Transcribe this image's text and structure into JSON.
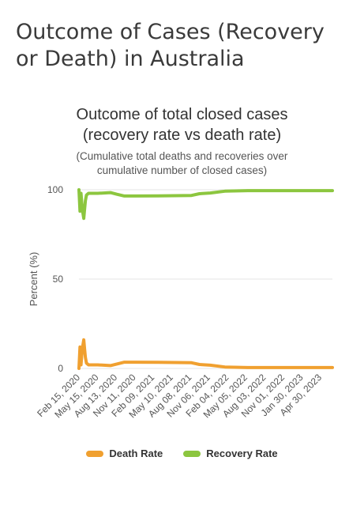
{
  "page": {
    "heading": "Outcome of Cases (Recovery or Death) in Australia"
  },
  "colors": {
    "death_rate": "#F0A030",
    "recovery_rate": "#8CC63F",
    "grid": "#e6e6e6"
  },
  "chart_data": {
    "type": "line",
    "title_line1": "Outcome of total closed cases",
    "title_line2": "(recovery rate vs death rate)",
    "subtitle_line1": "(Cumulative total deaths and recoveries over",
    "subtitle_line2": "cumulative number of closed cases)",
    "ylabel": "Percent (%)",
    "xlabel": "",
    "ylim": [
      0,
      100
    ],
    "yticks": [
      "0",
      "50",
      "100"
    ],
    "grid": true,
    "legend_position": "bottom-center",
    "x_tick_labels": [
      "Feb 15, 2020",
      "May 15, 2020",
      "Aug 13, 2020",
      "Nov 11, 2020",
      "Feb 09, 2021",
      "May 10, 2021",
      "Aug 08, 2021",
      "Nov 06, 2021",
      "Feb 04, 2022",
      "May 05, 2022",
      "Aug 03, 2022",
      "Nov 01, 2022",
      "Jan 30, 2023",
      "Apr 30, 2023"
    ],
    "x_range": [
      "2020-02-15",
      "2023-06-15"
    ],
    "series": [
      {
        "name": "Death Rate",
        "points": [
          [
            "2020-02-15",
            0
          ],
          [
            "2020-02-20",
            12
          ],
          [
            "2020-02-25",
            2
          ],
          [
            "2020-03-01",
            10
          ],
          [
            "2020-03-05",
            13
          ],
          [
            "2020-03-09",
            16
          ],
          [
            "2020-03-13",
            11
          ],
          [
            "2020-03-17",
            6
          ],
          [
            "2020-03-22",
            3
          ],
          [
            "2020-04-01",
            2
          ],
          [
            "2020-05-15",
            2
          ],
          [
            "2020-07-15",
            1.6
          ],
          [
            "2020-08-15",
            2.5
          ],
          [
            "2020-09-20",
            3.5
          ],
          [
            "2020-11-11",
            3.5
          ],
          [
            "2021-03-01",
            3.4
          ],
          [
            "2021-08-08",
            3.2
          ],
          [
            "2021-09-15",
            2.2
          ],
          [
            "2021-11-06",
            1.8
          ],
          [
            "2022-01-15",
            0.8
          ],
          [
            "2022-05-05",
            0.5
          ],
          [
            "2023-06-15",
            0.5
          ]
        ]
      },
      {
        "name": "Recovery Rate",
        "points": [
          [
            "2020-02-15",
            100
          ],
          [
            "2020-02-20",
            88
          ],
          [
            "2020-02-25",
            98
          ],
          [
            "2020-03-01",
            90
          ],
          [
            "2020-03-05",
            87
          ],
          [
            "2020-03-09",
            84
          ],
          [
            "2020-03-13",
            89
          ],
          [
            "2020-03-17",
            94
          ],
          [
            "2020-03-22",
            97
          ],
          [
            "2020-04-01",
            98
          ],
          [
            "2020-05-15",
            98
          ],
          [
            "2020-07-15",
            98.4
          ],
          [
            "2020-08-15",
            97.5
          ],
          [
            "2020-09-20",
            96.5
          ],
          [
            "2020-11-11",
            96.5
          ],
          [
            "2021-03-01",
            96.6
          ],
          [
            "2021-08-08",
            96.8
          ],
          [
            "2021-09-15",
            97.8
          ],
          [
            "2021-11-06",
            98.2
          ],
          [
            "2022-01-15",
            99.2
          ],
          [
            "2022-05-05",
            99.5
          ],
          [
            "2023-06-15",
            99.5
          ]
        ]
      }
    ]
  }
}
